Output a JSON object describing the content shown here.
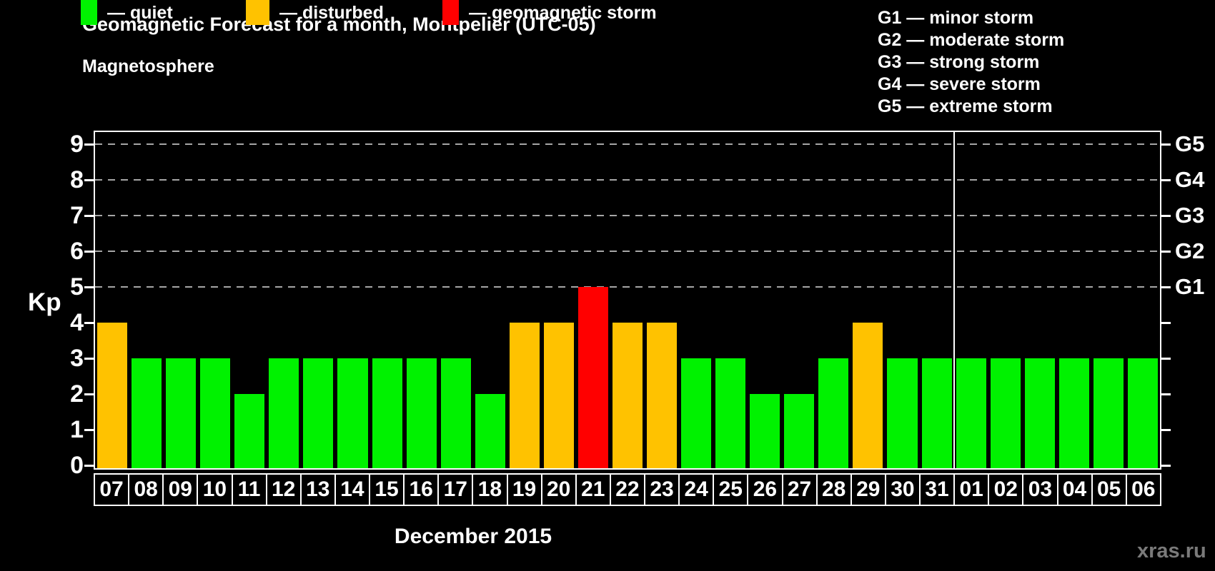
{
  "title": "Geomagnetic Forecast for a month, Montpelier (UTC-05)",
  "subtitle": "Magnetosphere",
  "legend": {
    "items": [
      {
        "label": "— quiet",
        "color": "#00f200",
        "state": "quiet"
      },
      {
        "label": "— disturbed",
        "color": "#ffc200",
        "state": "disturbed"
      },
      {
        "label": "— geomagnetic storm",
        "color": "#ff0000",
        "state": "storm"
      }
    ]
  },
  "g_scale_legend": [
    "G1 — minor storm",
    "G2 — moderate storm",
    "G3 — strong storm",
    "G4 — severe storm",
    "G5 — extreme storm"
  ],
  "axes": {
    "left_label": "Kp",
    "left_ticks": [
      0,
      1,
      2,
      3,
      4,
      5,
      6,
      7,
      8,
      9
    ],
    "right_labels": [
      {
        "kp": 5,
        "label": "G1"
      },
      {
        "kp": 6,
        "label": "G2"
      },
      {
        "kp": 7,
        "label": "G3"
      },
      {
        "kp": 8,
        "label": "G4"
      },
      {
        "kp": 9,
        "label": "G5"
      }
    ],
    "month_label": "December 2015"
  },
  "watermark": "xras.ru",
  "chart_data": {
    "type": "bar",
    "title": "Geomagnetic Forecast for a month, Montpelier (UTC-05)",
    "xlabel": "December 2015",
    "ylabel": "Kp",
    "ylim": [
      0,
      9
    ],
    "grid": "dashed horizontal lines at Kp 5-9 (G1-G5)",
    "legend_position": "top",
    "categories": [
      "07",
      "08",
      "09",
      "10",
      "11",
      "12",
      "13",
      "14",
      "15",
      "16",
      "17",
      "18",
      "19",
      "20",
      "21",
      "22",
      "23",
      "24",
      "25",
      "26",
      "27",
      "28",
      "29",
      "30",
      "31",
      "01",
      "02",
      "03",
      "04",
      "05",
      "06"
    ],
    "values": [
      4,
      3,
      3,
      3,
      2,
      3,
      3,
      3,
      3,
      3,
      3,
      2,
      4,
      4,
      5,
      4,
      4,
      3,
      3,
      2,
      2,
      3,
      4,
      3,
      3,
      3,
      3,
      3,
      3,
      3,
      3
    ],
    "states": [
      "disturbed",
      "quiet",
      "quiet",
      "quiet",
      "quiet",
      "quiet",
      "quiet",
      "quiet",
      "quiet",
      "quiet",
      "quiet",
      "quiet",
      "disturbed",
      "disturbed",
      "storm",
      "disturbed",
      "disturbed",
      "quiet",
      "quiet",
      "quiet",
      "quiet",
      "quiet",
      "disturbed",
      "quiet",
      "quiet",
      "quiet",
      "quiet",
      "quiet",
      "quiet",
      "quiet",
      "quiet"
    ],
    "colors": {
      "quiet": "#00f200",
      "disturbed": "#ffc200",
      "storm": "#ff0000"
    },
    "gridlines_kp": [
      5,
      6,
      7,
      8,
      9
    ],
    "month_boundary_after_index": 24
  }
}
